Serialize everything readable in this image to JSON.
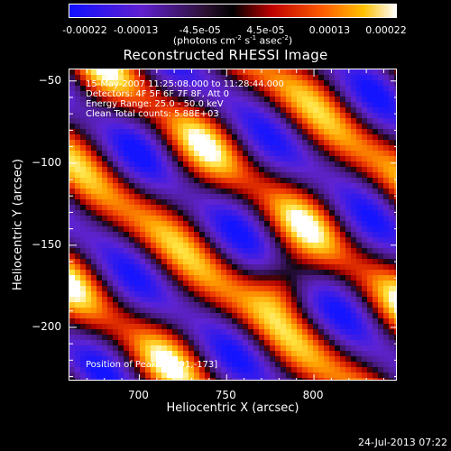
{
  "colorbar": {
    "ticks": [
      "-0.00022",
      "-0.00013",
      "-4.5e-05",
      "4.5e-05",
      "0.00013",
      "0.00022"
    ],
    "units_prefix": "(photons cm",
    "units_exp1": "-2",
    "units_mid": " s",
    "units_exp2": "-1",
    "units_mid2": " asec",
    "units_exp3": "-2",
    "units_suffix": ")",
    "range": [
      -0.00022,
      0.00022
    ]
  },
  "chart_data": {
    "type": "heatmap",
    "title": "Reconstructed RHESSI Image",
    "xlabel": "Heliocentric X (arcsec)",
    "ylabel": "Heliocentric Y (arcsec)",
    "xlim": [
      660,
      848
    ],
    "ylim": [
      -233,
      -43
    ],
    "x_ticks": [
      700,
      750,
      800
    ],
    "y_ticks": [
      -50,
      -100,
      -150,
      -200
    ],
    "x_tick_labels": [
      "700",
      "750",
      "800"
    ],
    "y_tick_labels": [
      "−50",
      "−100",
      "−150",
      "−200"
    ],
    "annotations": [
      "15-May-2007 11:25:08.000 to 11:28:44.000",
      "Detectors: 4F 5F 6F 7F 8F, Att 0",
      "Energy Range: 25.0 - 50.0 keV",
      "Clean    Total counts: 5.88E+03"
    ],
    "peak_label": "Position of Peak = [791,-173]",
    "peak": [
      791,
      -173
    ],
    "pattern": "diagonal stripes (upper-left to lower-right) of bright positive emission alternating with purple/blue negative troughs"
  },
  "footer": {
    "datestamp": "24-Jul-2013 07:22"
  }
}
